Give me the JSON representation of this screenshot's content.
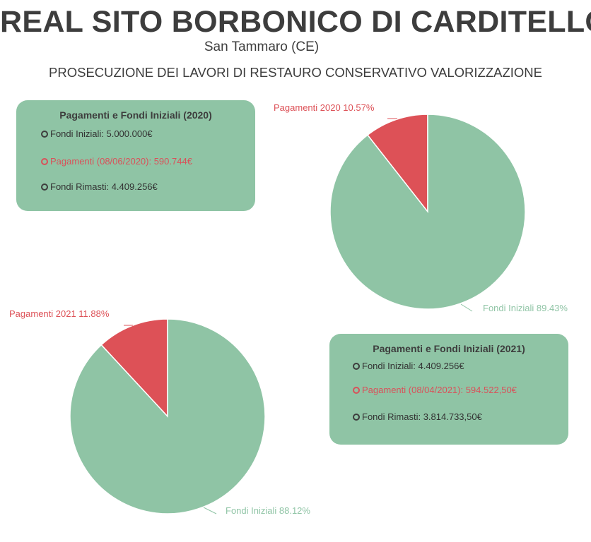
{
  "header": {
    "title": "REAL SITO BORBONICO DI CARDITELLO",
    "subtitle": "San Tammaro (CE)",
    "heading": "PROSECUZIONE DEI LAVORI DI RESTAURO CONSERVATIVO VALORIZZAZIONE"
  },
  "info_boxes": [
    {
      "title": "Pagamenti e Fondi Iniziali (2020)",
      "items": [
        {
          "text": "Fondi Iniziali: 5.000.000€"
        },
        {
          "text": "Pagamenti (08/06/2020): 590.744€"
        },
        {
          "text": "Fondi Rimasti: 4.409.256€"
        }
      ]
    },
    {
      "title": "Pagamenti e Fondi Iniziali (2021)",
      "items": [
        {
          "text": "Fondi Iniziali: 4.409.256€"
        },
        {
          "text": "Pagamenti (08/04/2021): 594.522,50€"
        },
        {
          "text": "Fondi Rimasti: 3.814.733,50€"
        }
      ]
    }
  ],
  "colors": {
    "green": "#8fc4a5",
    "red": "#dd5157",
    "text": "#3d3d3d"
  },
  "chart_data": [
    {
      "type": "pie",
      "categories": [
        "Pagamenti 2020",
        "Fondi Iniziali"
      ],
      "values": [
        10.57,
        89.43
      ],
      "labels": [
        "Pagamenti 2020 10.57%",
        "Fondi Iniziali 89.43%"
      ],
      "colors": [
        "#dd5157",
        "#8fc4a5"
      ]
    },
    {
      "type": "pie",
      "categories": [
        "Pagamenti 2021",
        "Fondi Iniziali"
      ],
      "values": [
        11.88,
        88.12
      ],
      "labels": [
        "Pagamenti 2021 11.88%",
        "Fondi Iniziali 88.12%"
      ],
      "colors": [
        "#dd5157",
        "#8fc4a5"
      ]
    }
  ]
}
